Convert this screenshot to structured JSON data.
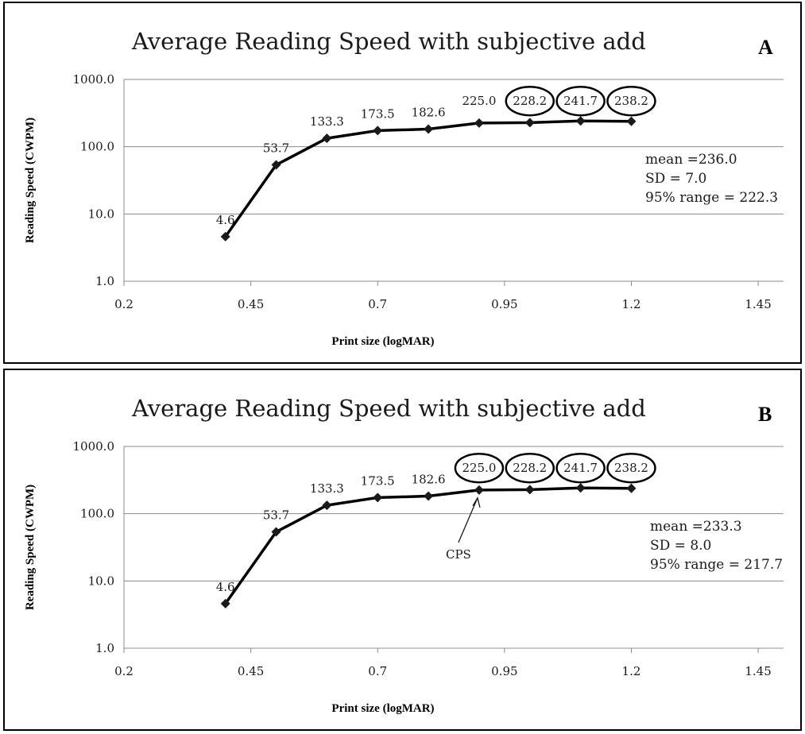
{
  "chart_data": [
    {
      "type": "line",
      "panel_letter": "A",
      "title": "Average Reading Speed with subjective add",
      "xlabel": "Print size (logMAR)",
      "ylabel": "Reading Speed (CWPM)",
      "xlim": [
        0.2,
        1.5
      ],
      "xticks": [
        "0.2",
        "0.45",
        "0.7",
        "0.95",
        "1.2",
        "1.45"
      ],
      "yscale": "log",
      "ylim": [
        1,
        1000
      ],
      "yticks": [
        "1.0",
        "10.0",
        "100.0",
        "1000.0"
      ],
      "grid": true,
      "series": [
        {
          "x": [
            0.4,
            0.5,
            0.6,
            0.7,
            0.8,
            0.9,
            1.0,
            1.1,
            1.2
          ],
          "values": [
            4.6,
            53.7,
            133.3,
            173.5,
            182.6,
            225.0,
            228.2,
            241.7,
            238.2
          ],
          "labels": [
            "4.6",
            "53.7",
            "133.3",
            "173.5",
            "182.6",
            "225.0",
            "228.2",
            "241.7",
            "238.2"
          ],
          "circled": [
            false,
            false,
            false,
            false,
            false,
            false,
            true,
            true,
            true
          ]
        }
      ],
      "stats": [
        "mean =236.0",
        "SD = 7.0",
        "95% range = 222.3"
      ],
      "annotation": ""
    },
    {
      "type": "line",
      "panel_letter": "B",
      "title": "Average Reading Speed with subjective add",
      "xlabel": "Print size (logMAR)",
      "ylabel": "Reading Speed (CWPM)",
      "xlim": [
        0.2,
        1.5
      ],
      "xticks": [
        "0.2",
        "0.45",
        "0.7",
        "0.95",
        "1.2",
        "1.45"
      ],
      "yscale": "log",
      "ylim": [
        1,
        1000
      ],
      "yticks": [
        "1.0",
        "10.0",
        "100.0",
        "1000.0"
      ],
      "grid": true,
      "series": [
        {
          "x": [
            0.4,
            0.5,
            0.6,
            0.7,
            0.8,
            0.9,
            1.0,
            1.1,
            1.2
          ],
          "values": [
            4.6,
            53.7,
            133.3,
            173.5,
            182.6,
            225.0,
            228.2,
            241.7,
            238.2
          ],
          "labels": [
            "4.6",
            "53.7",
            "133.3",
            "173.5",
            "182.6",
            "225.0",
            "228.2",
            "241.7",
            "238.2"
          ],
          "circled": [
            false,
            false,
            false,
            false,
            false,
            true,
            true,
            true,
            true
          ]
        }
      ],
      "stats": [
        "mean =233.3",
        "SD = 8.0",
        " 95% range = 217.7"
      ],
      "annotation": "CPS",
      "annotation_x": 0.9
    }
  ]
}
